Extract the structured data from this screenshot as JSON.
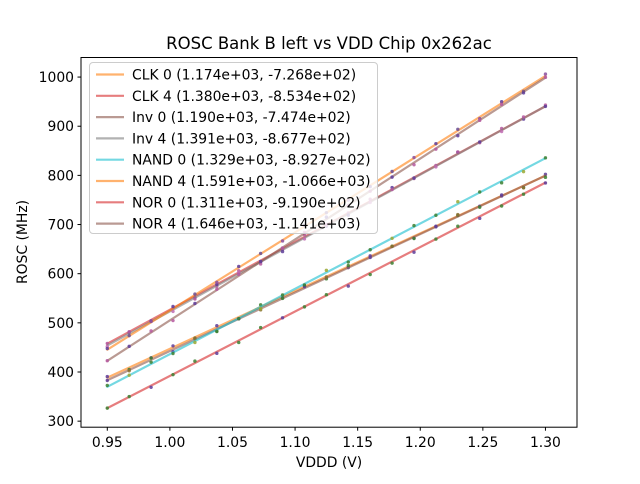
{
  "chart_data": {
    "type": "line",
    "title": "ROSC Bank B left vs VDD Chip 0x262ac",
    "xlabel": "VDDD (V)",
    "ylabel": "ROSC (MHz)",
    "xlim": [
      0.929,
      1.3252
    ],
    "ylim": [
      287.7,
      1039.8
    ],
    "x_ticks": [
      0.95,
      1.0,
      1.05,
      1.1,
      1.15,
      1.2,
      1.25,
      1.3
    ],
    "x_tick_labels": [
      "0.95",
      "1.00",
      "1.05",
      "1.10",
      "1.15",
      "1.20",
      "1.25",
      "1.30"
    ],
    "y_ticks": [
      300,
      400,
      500,
      600,
      700,
      800,
      900,
      1000
    ],
    "y_tick_labels": [
      "300",
      "400",
      "500",
      "600",
      "700",
      "800",
      "900",
      "1000"
    ],
    "grid": false,
    "legend_position": "upper left",
    "x_points": {
      "start": 0.95,
      "step": 0.0175,
      "count": 21
    },
    "line_alpha": 0.6,
    "marker_alpha": 0.85,
    "series": [
      {
        "name": "CLK 0",
        "label": "CLK 0 (1.174e+03, -7.268e+02)",
        "slope": 1174.0,
        "intercept": -726.8,
        "color": "#ff7f0e",
        "marker_colors": [
          "#5e3c99",
          "#3c8031",
          "#5e3c99"
        ]
      },
      {
        "name": "CLK 4",
        "label": "CLK 4 (1.380e+03, -8.534e+02)",
        "slope": 1380.0,
        "intercept": -853.4,
        "color": "#d62728",
        "marker_colors": [
          "#b5589f",
          "#5e3c99",
          "#b5589f"
        ]
      },
      {
        "name": "Inv 0",
        "label": "Inv 0 (1.190e+03, -7.474e+02)",
        "slope": 1190.0,
        "intercept": -747.4,
        "color": "#8c564b",
        "marker_colors": [
          "#5e3c99",
          "#8a6f2f",
          "#3c8031"
        ]
      },
      {
        "name": "Inv 4",
        "label": "Inv 4 (1.391e+03, -8.677e+02)",
        "slope": 1391.0,
        "intercept": -867.7,
        "color": "#7f7f7f",
        "marker_colors": [
          "#c06bb3",
          "#b5589f",
          "#5e3c99"
        ]
      },
      {
        "name": "NAND 0",
        "label": "NAND 0 (1.329e+03, -8.927e+02)",
        "slope": 1329.0,
        "intercept": -892.7,
        "color": "#17becf",
        "marker_colors": [
          "#3c8031",
          "#9aa832",
          "#3c8031"
        ]
      },
      {
        "name": "NAND 4",
        "label": "NAND 4 (1.591e+03, -1.066e+03)",
        "slope": 1591.0,
        "intercept": -1066.0,
        "color": "#ff7f0e",
        "marker_colors": [
          "#5e3c99",
          "#6a4c93",
          "#8a4fa0"
        ]
      },
      {
        "name": "NOR 0",
        "label": "NOR 0 (1.311e+03, -9.190e+02)",
        "slope": 1311.0,
        "intercept": -919.0,
        "color": "#d62728",
        "marker_colors": [
          "#3c8031",
          "#3c8031",
          "#5e3c99"
        ]
      },
      {
        "name": "NOR 4",
        "label": "NOR 4 (1.646e+03, -1.141e+03)",
        "slope": 1646.0,
        "intercept": -1141.0,
        "color": "#8c564b",
        "marker_colors": [
          "#b5589f",
          "#5e3c99",
          "#b5589f"
        ]
      }
    ]
  }
}
